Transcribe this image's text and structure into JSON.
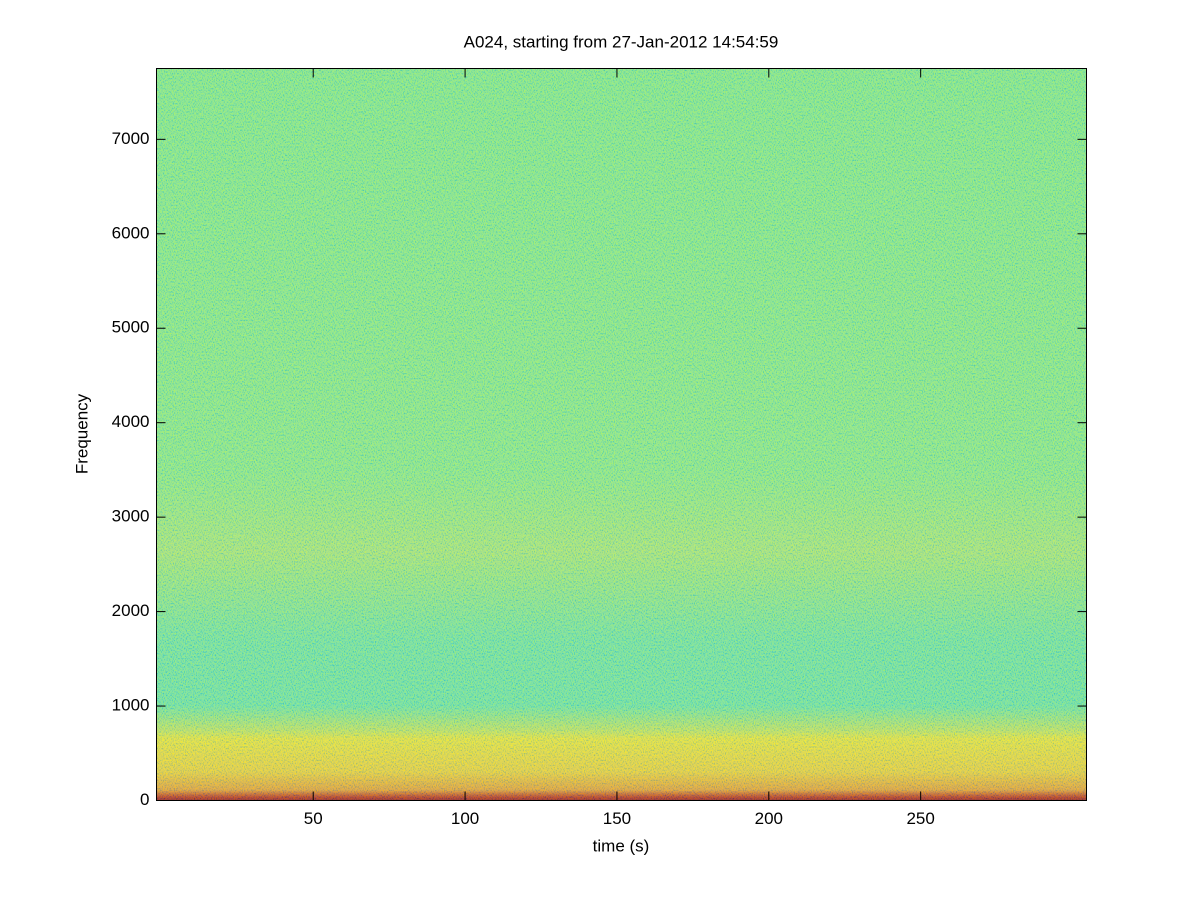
{
  "chart_data": {
    "type": "spectrogram",
    "title": "A024, starting from 27-Jan-2012 14:54:59",
    "x_label": "time (s)",
    "y_label": "Frequency",
    "xlim": [
      -1.6,
      304.6
    ],
    "ylim": [
      0,
      7750
    ],
    "xticks": [
      50,
      100,
      150,
      200,
      250
    ],
    "yticks": [
      0,
      1000,
      2000,
      3000,
      4000,
      5000,
      6000,
      7000
    ],
    "grid": false
  }
}
